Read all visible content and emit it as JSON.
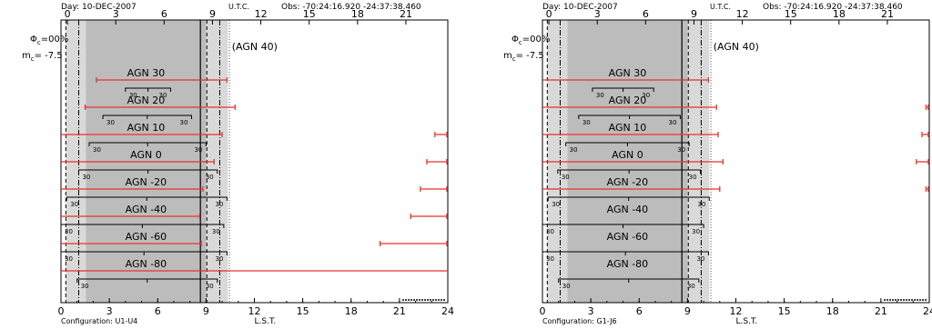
{
  "day_label": "Day: 10-DEC-2007",
  "utc_label": "U.T.C.",
  "obs_label": "Obs: -70:24:16.920 -24:37:38.460",
  "lst_label": "L.S.T.",
  "phase_label": "Φ",
  "phase_sub": "c",
  "phase_value": "=00%",
  "mag_label": "m",
  "mag_sub": "c",
  "mag_value": "= -7.5",
  "highlight_label": "(AGN 40)",
  "colors": {
    "shade_dark": "#bcbcbc",
    "shade_light": "#d9d9d9",
    "red": "#e8322c",
    "black": "#000000"
  },
  "chart_data": [
    {
      "type": "visibility-timeline",
      "config_label": "Configuration: U1-U4",
      "x_range": [
        0,
        24
      ],
      "lst_ticks": [
        "0",
        "3",
        "6",
        "9",
        "12",
        "15",
        "18",
        "21",
        "24"
      ],
      "utc_ticks": [
        "0",
        "3",
        "6",
        "9",
        "12",
        "15",
        "18",
        "21"
      ],
      "utc_offset_hours": 0.4,
      "shade_dark": [
        1.55,
        9.0
      ],
      "shade_light": [
        0.3,
        10.35
      ],
      "vlines_dashed": [
        0.3,
        1.1,
        9.05,
        9.85
      ],
      "vline_solid": 8.65,
      "vline_dotted": 10.45,
      "targets": [
        {
          "name": "AGN 30",
          "red": [
            [
              2.2,
              10.3
            ]
          ],
          "bracket": [
            4.0,
            6.8
          ],
          "bracket_left": "30",
          "bracket_right": "30"
        },
        {
          "name": "AGN 20",
          "red": [
            [
              1.5,
              10.8
            ]
          ],
          "bracket": [
            2.6,
            8.1
          ],
          "bracket_left": "30",
          "bracket_right": "30"
        },
        {
          "name": "AGN 10",
          "red": [
            [
              0.0,
              10.0
            ],
            [
              23.2,
              24.0
            ]
          ],
          "bracket": [
            1.75,
            9.0
          ],
          "bracket_left": "30",
          "bracket_right": "30"
        },
        {
          "name": "AGN 0",
          "red": [
            [
              0.0,
              9.5
            ],
            [
              22.7,
              24.0
            ]
          ],
          "bracket": [
            1.1,
            9.7
          ],
          "bracket_left": "30",
          "bracket_right": "30"
        },
        {
          "name": "AGN -20",
          "red": [
            [
              0.0,
              8.8
            ],
            [
              22.3,
              24.0
            ]
          ],
          "bracket": [
            0.35,
            10.3
          ],
          "bracket_left": "30",
          "bracket_right": "30"
        },
        {
          "name": "AGN -40",
          "red": [
            [
              0.0,
              8.6
            ],
            [
              21.7,
              24.0
            ]
          ],
          "bracket": [
            0.0,
            10.1
          ],
          "bracket_left": "30",
          "bracket_right": "30"
        },
        {
          "name": "AGN -60",
          "red": [
            [
              0.0,
              8.7
            ],
            [
              19.8,
              24.0
            ]
          ],
          "bracket": [
            0.0,
            10.3
          ],
          "bracket_left": "30",
          "bracket_right": "30"
        },
        {
          "name": "AGN -80",
          "red": [
            [
              0.0,
              24.0
            ]
          ],
          "bracket": [
            1.0,
            9.7
          ],
          "bracket_left": "30",
          "bracket_right": "30"
        }
      ]
    },
    {
      "type": "visibility-timeline",
      "config_label": "Configuration: G1-J6",
      "x_range": [
        0,
        24
      ],
      "lst_ticks": [
        "0",
        "3",
        "6",
        "9",
        "12",
        "15",
        "18",
        "21",
        "24"
      ],
      "utc_ticks": [
        "0",
        "3",
        "6",
        "9",
        "12",
        "15",
        "18",
        "21"
      ],
      "utc_offset_hours": 0.4,
      "shade_dark": [
        1.55,
        9.0
      ],
      "shade_light": [
        0.3,
        10.35
      ],
      "vlines_dashed": [
        0.3,
        1.1,
        9.05,
        9.85
      ],
      "vline_solid": 8.65,
      "vline_dotted": 10.45,
      "targets": [
        {
          "name": "AGN 30",
          "red": [
            [
              0.0,
              10.3
            ]
          ],
          "bracket": [
            3.1,
            6.9
          ],
          "bracket_left": "30",
          "bracket_right": "30"
        },
        {
          "name": "AGN 20",
          "red": [
            [
              0.0,
              10.8
            ],
            [
              23.8,
              24.0
            ]
          ],
          "bracket": [
            2.25,
            8.55
          ],
          "bracket_left": "30",
          "bracket_right": "30"
        },
        {
          "name": "AGN 10",
          "red": [
            [
              0.0,
              10.9
            ],
            [
              23.55,
              24.0
            ]
          ],
          "bracket": [
            1.45,
            9.1
          ],
          "bracket_left": "30",
          "bracket_right": "30"
        },
        {
          "name": "AGN 0",
          "red": [
            [
              0.0,
              11.2
            ],
            [
              23.2,
              24.0
            ]
          ],
          "bracket": [
            0.95,
            9.8
          ],
          "bracket_left": "30",
          "bracket_right": "30"
        },
        {
          "name": "AGN -20",
          "red": [
            [
              0.0,
              11.0
            ],
            [
              23.8,
              24.0
            ]
          ],
          "bracket": [
            0.35,
            10.35
          ],
          "bracket_left": "30",
          "bracket_right": "30"
        },
        {
          "name": "AGN -40",
          "red": [],
          "bracket": [
            0.0,
            10.0
          ],
          "bracket_left": "30",
          "bracket_right": "30"
        },
        {
          "name": "AGN -60",
          "red": [],
          "bracket": [
            0.0,
            10.3
          ],
          "bracket_left": "30",
          "bracket_right": "30"
        },
        {
          "name": "AGN -80",
          "red": [],
          "bracket": [
            1.0,
            9.7
          ],
          "bracket_left": "30",
          "bracket_right": "30"
        }
      ]
    }
  ]
}
